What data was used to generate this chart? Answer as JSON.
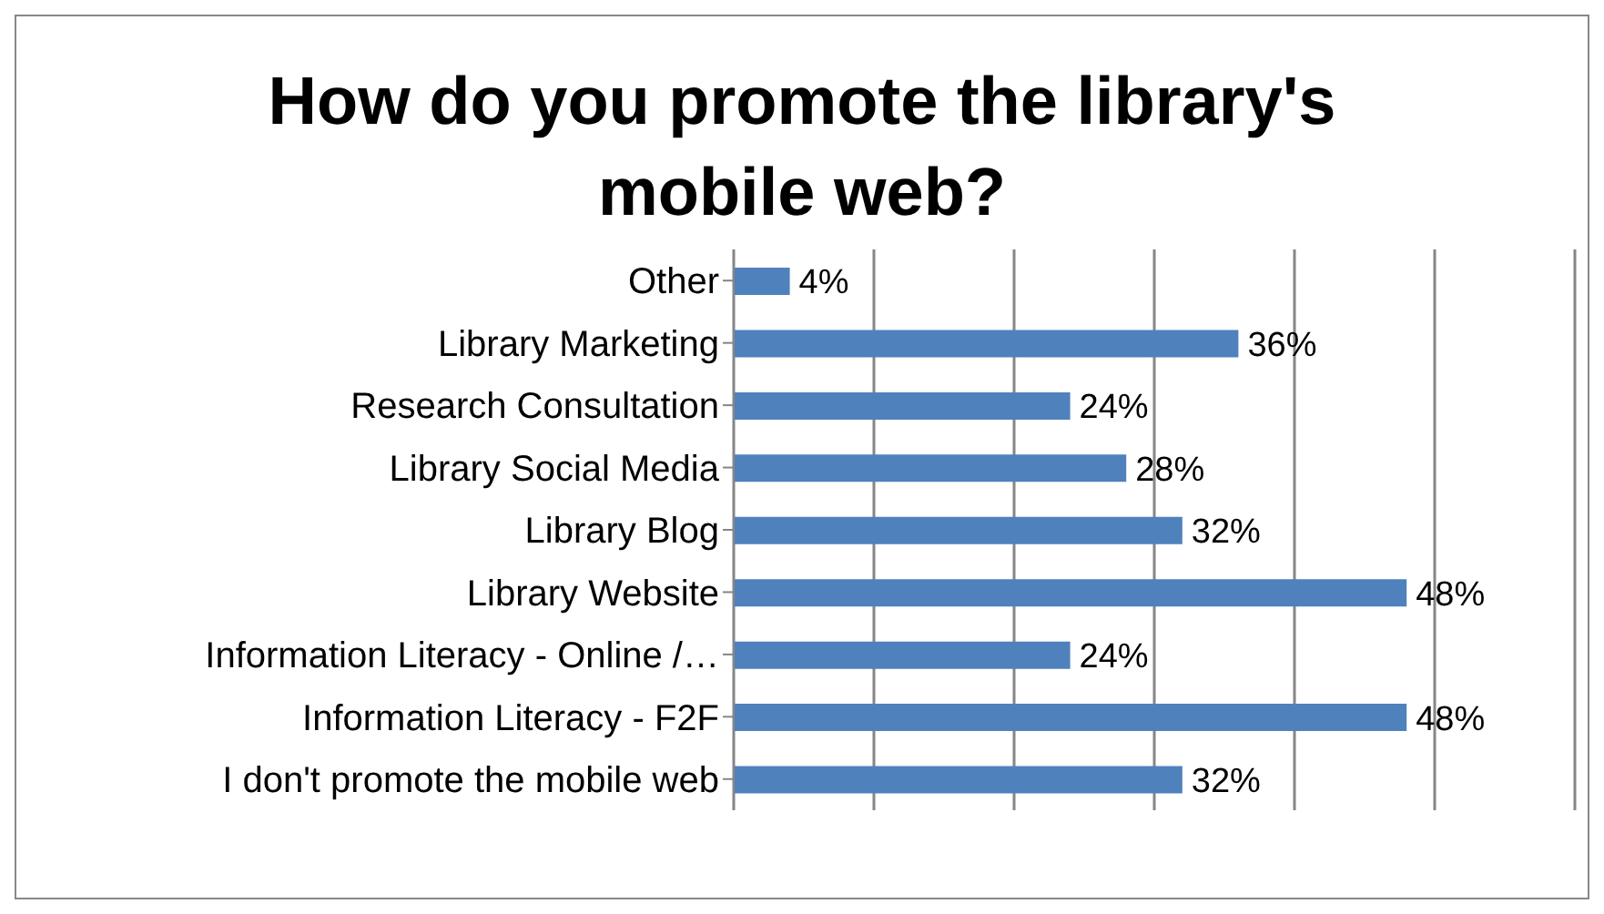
{
  "chart_data": {
    "type": "bar",
    "orientation": "horizontal",
    "title": "How do you promote the library's mobile web?",
    "categories": [
      "Other",
      "Library Marketing",
      "Research Consultation",
      "Library Social Media",
      "Library Blog",
      "Library Website",
      "Information Literacy - Online /…",
      "Information Literacy - F2F",
      "I don't promote the mobile web"
    ],
    "values": [
      4,
      36,
      24,
      28,
      32,
      48,
      24,
      48,
      32
    ],
    "value_labels": [
      "4%",
      "36%",
      "24%",
      "28%",
      "32%",
      "48%",
      "24%",
      "48%",
      "32%"
    ],
    "color": "#4f81bd",
    "xlim": [
      0,
      60
    ],
    "xticks": [
      {
        "value": 0,
        "label": null
      },
      {
        "value": 10,
        "label": null
      },
      {
        "value": 20,
        "label": null
      },
      {
        "value": 30,
        "label": null
      },
      {
        "value": 40,
        "label": null
      },
      {
        "value": 50,
        "label": null
      },
      {
        "value": 60,
        "label": null
      }
    ],
    "tick_labels": "y",
    "grid": "x",
    "legend": false
  }
}
